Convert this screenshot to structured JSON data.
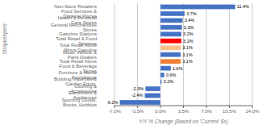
{
  "chart_data": {
    "type": "bar",
    "orientation": "horizontal",
    "xlabel": "Y/Y % Change (Based  on 'Current' $s)",
    "ylabel": "Shopkeepers'",
    "categories": [
      "Non-Store Retailers",
      "Food Services & Drinking Places",
      "Health & Personal Care Stores",
      "General Merchandise Stores",
      "Gasoline Stations",
      "Total Retail & Food Services",
      "Total Retail Alone Minus Gasoline",
      "Motor Vehicle & Parts Dealers",
      "Total Retail Alone",
      "Food & Beverage Stores",
      "Furniture & Home Furnishings",
      "Building Materials & Garden Equip.",
      "Clothing & Accessories",
      "Electronics & Appliances",
      "Sporting Goods, Books, Hobbies"
    ],
    "values": [
      11.4,
      3.7,
      3.4,
      3.3,
      3.2,
      3.2,
      3.1,
      3.1,
      3.1,
      1.6,
      0.6,
      0.2,
      -2.3,
      -2.4,
      -6.2
    ],
    "value_labels": [
      "11.4%",
      "3.7%",
      "3.4%",
      "3.3%",
      "3.2%",
      "3.2%",
      "3.1%",
      "3.1%",
      "3.1%",
      "1.6%",
      "0.6%",
      "0.2%",
      "-2.3%",
      "-2.4%",
      "-6.2%"
    ],
    "colors": [
      "#4472C4",
      "#4472C4",
      "#4472C4",
      "#4472C4",
      "#4472C4",
      "#FF0000",
      "#F5C08A",
      "#4472C4",
      "#ED7D31",
      "#4472C4",
      "#4472C4",
      "#4472C4",
      "#4472C4",
      "#4472C4",
      "#4472C4"
    ],
    "xlim": [
      -7.0,
      14.0
    ],
    "xticks": [
      {
        "value": -7.0,
        "label": "-7.0%"
      },
      {
        "value": -3.5,
        "label": "-3.5%"
      },
      {
        "value": 0.0,
        "label": "0.0%"
      },
      {
        "value": 3.5,
        "label": "3.5%"
      },
      {
        "value": 7.0,
        "label": "7.0%"
      },
      {
        "value": 10.5,
        "label": "10.5%"
      },
      {
        "value": 14.0,
        "label": "14.0%"
      }
    ],
    "data_labels": true,
    "grid": true
  }
}
